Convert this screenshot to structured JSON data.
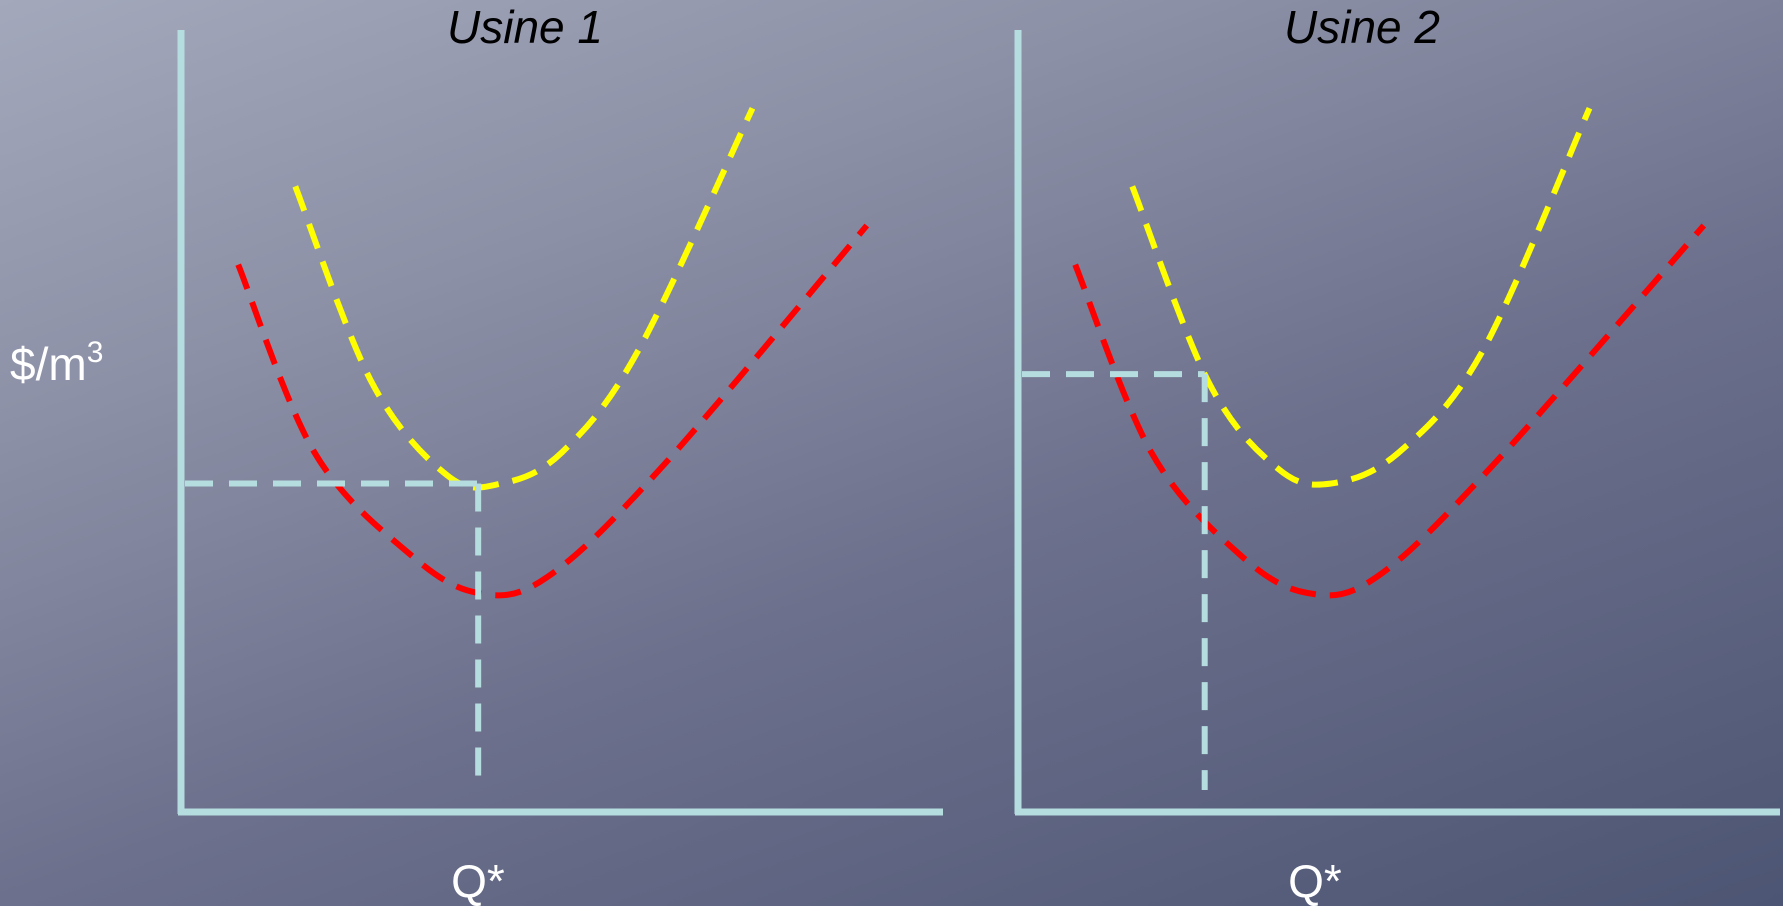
{
  "y_axis_label": {
    "base": "$/m",
    "superscript": "3"
  },
  "colors": {
    "axis": "#b5dde0",
    "guide": "#b5dde0",
    "upper_curve": "#ffff00",
    "lower_curve": "#ff0000",
    "title_text": "#000000",
    "label_text": "#ffffff"
  },
  "chart_data": [
    {
      "type": "line",
      "title": "Usine 1",
      "xlabel": "Q*",
      "ylabel": "$/m3",
      "grid": false,
      "legend": "none",
      "xlim": [
        0,
        10
      ],
      "ylim": [
        0,
        10
      ],
      "series": [
        {
          "color": "#ffff00",
          "style": "dashed",
          "x": [
            1.5,
            2.5,
            3.5,
            4.2,
            5.0,
            6.0,
            7.5
          ],
          "y": [
            8.0,
            5.5,
            4.3,
            4.2,
            4.6,
            5.9,
            9.0
          ]
        },
        {
          "color": "#ff0000",
          "style": "dashed",
          "x": [
            0.75,
            1.75,
            3.0,
            3.9,
            4.8,
            6.3,
            9.0
          ],
          "y": [
            7.0,
            4.6,
            3.3,
            2.8,
            3.0,
            4.4,
            7.5
          ]
        }
      ],
      "guides": {
        "x": 3.9,
        "y": 4.2
      }
    },
    {
      "type": "line",
      "title": "Usine 2",
      "xlabel": "Q*",
      "ylabel": "",
      "grid": false,
      "legend": "none",
      "xlim": [
        0,
        10
      ],
      "ylim": [
        0,
        10
      ],
      "series": [
        {
          "color": "#ffff00",
          "style": "dashed",
          "x": [
            1.5,
            2.5,
            3.4,
            4.1,
            5.0,
            6.1,
            7.5
          ],
          "y": [
            8.0,
            5.5,
            4.4,
            4.2,
            4.6,
            5.9,
            9.0
          ]
        },
        {
          "color": "#ff0000",
          "style": "dashed",
          "x": [
            0.75,
            1.75,
            2.9,
            3.8,
            4.7,
            6.2,
            9.0
          ],
          "y": [
            7.0,
            4.6,
            3.3,
            2.8,
            3.0,
            4.4,
            7.5
          ]
        }
      ],
      "guides": {
        "x": 2.45,
        "y": 5.6
      }
    }
  ]
}
